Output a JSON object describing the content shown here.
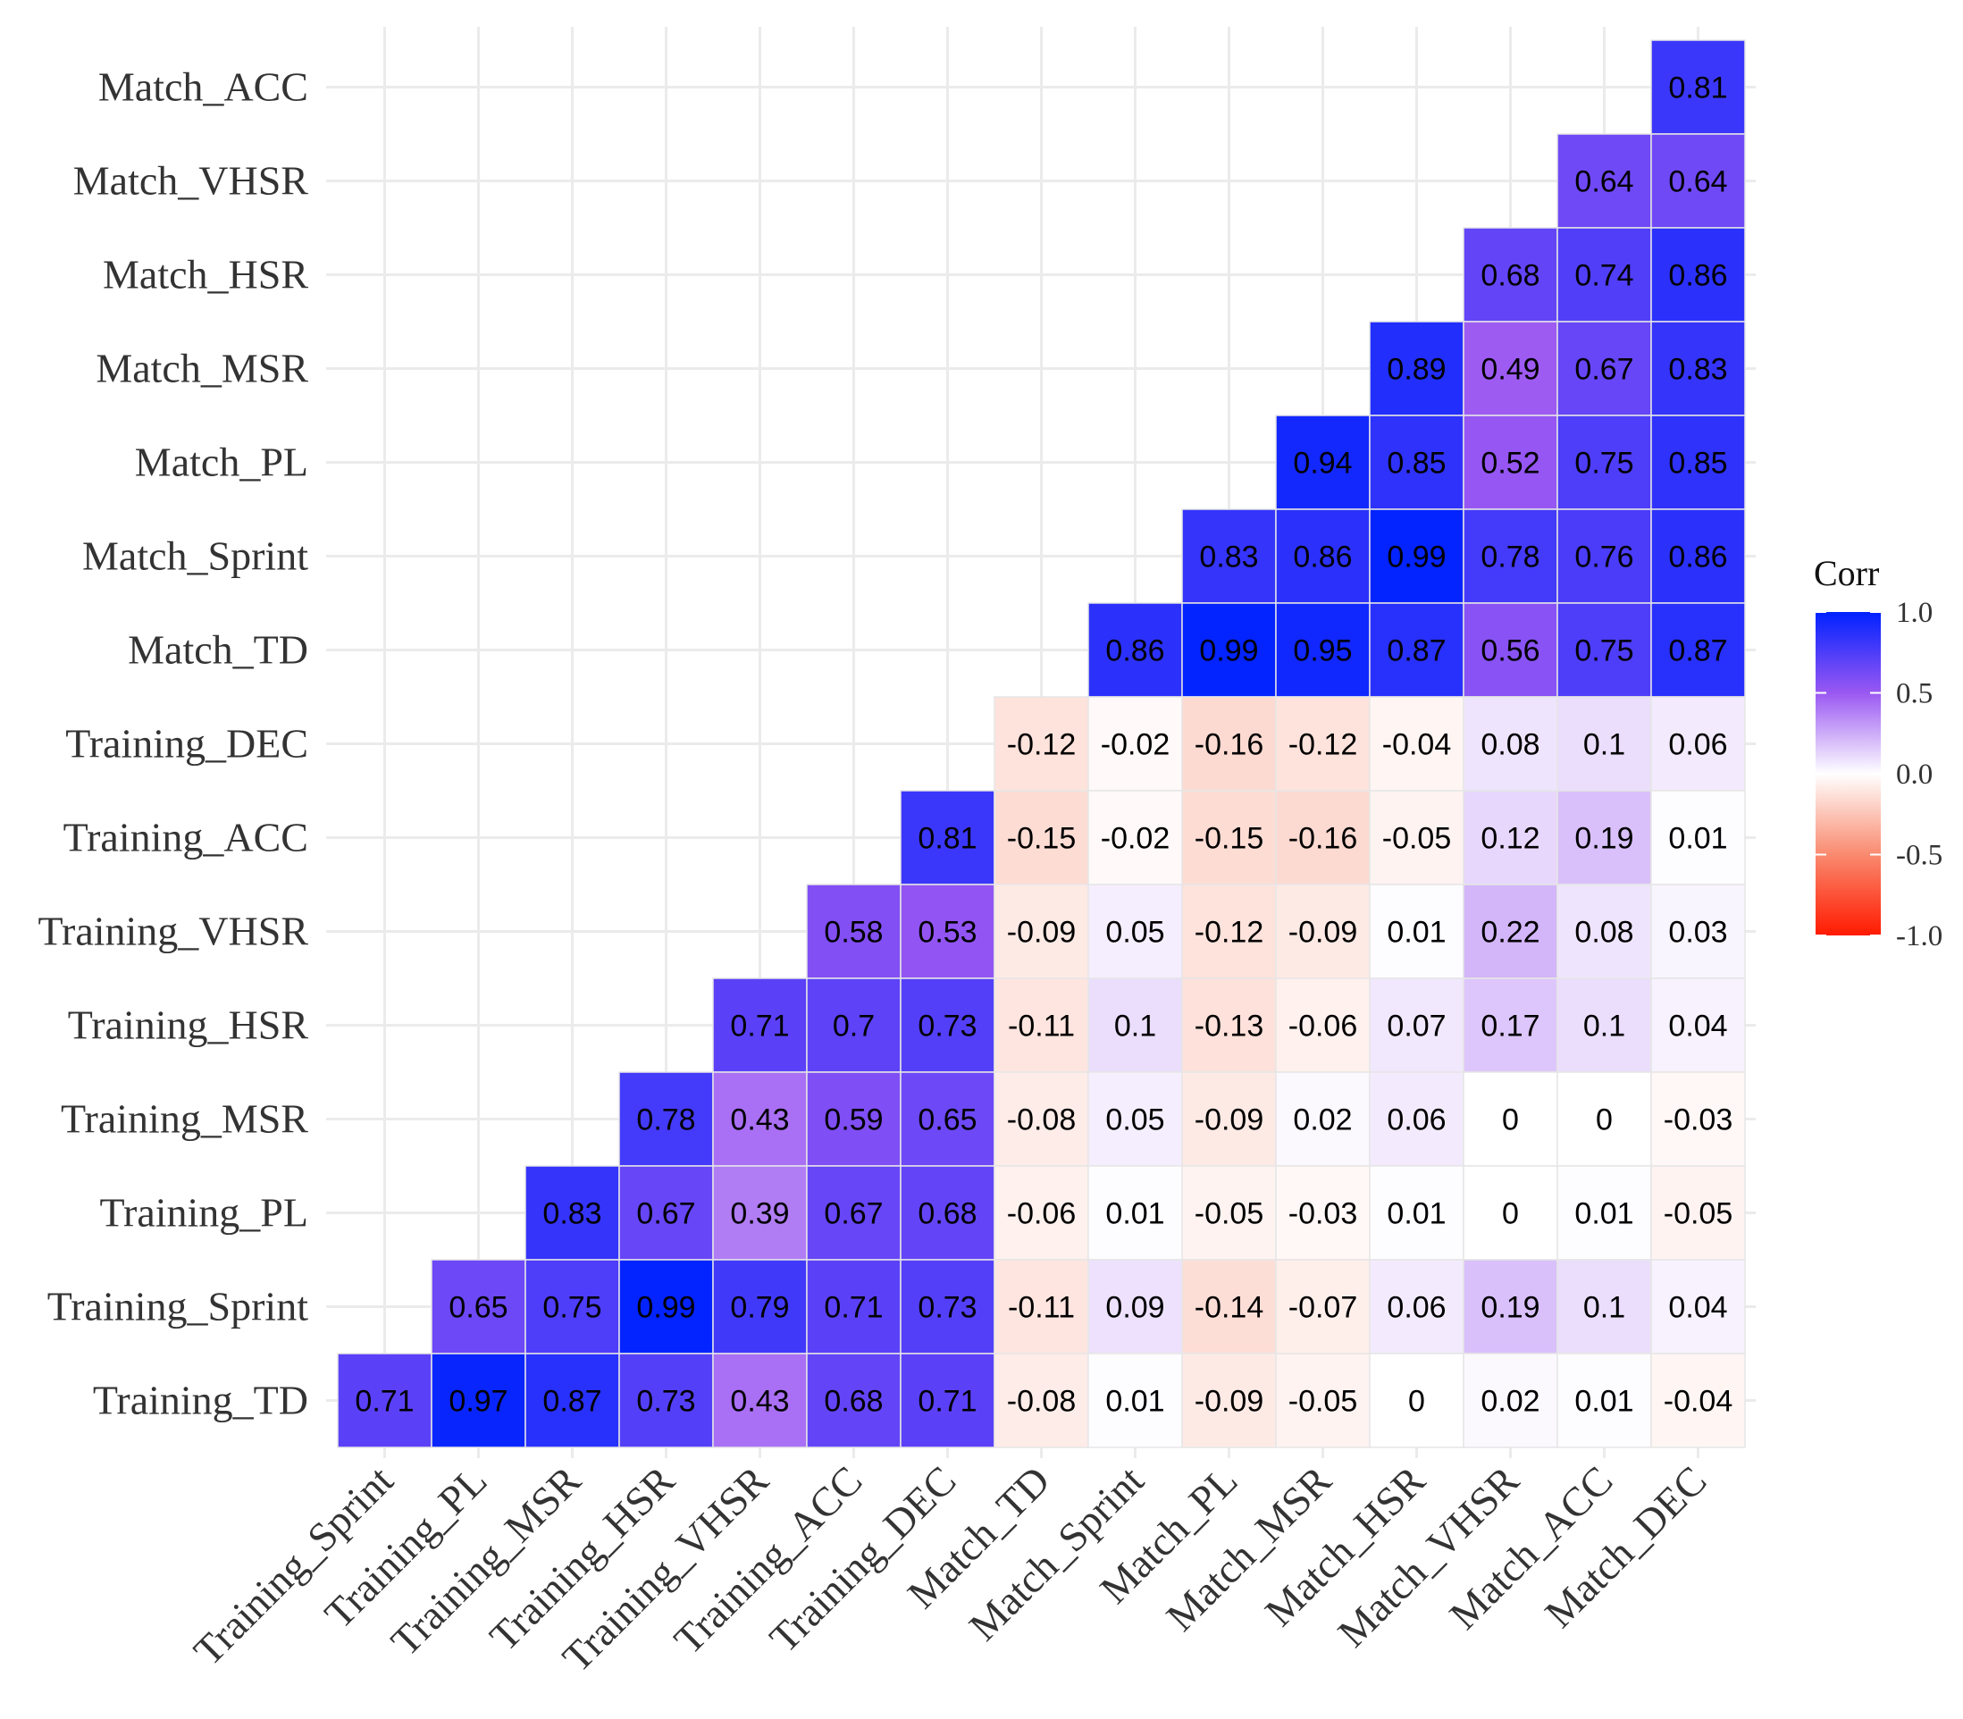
{
  "chart_data": {
    "type": "heatmap",
    "title": "",
    "xlabel": "",
    "ylabel": "",
    "x_categories": [
      "Training_Sprint",
      "Training_PL",
      "Training_MSR",
      "Training_HSR",
      "Training_VHSR",
      "Training_ACC",
      "Training_DEC",
      "Match_TD",
      "Match_Sprint",
      "Match_PL",
      "Match_MSR",
      "Match_HSR",
      "Match_VHSR",
      "Match_ACC",
      "Match_DEC"
    ],
    "y_categories": [
      "Match_ACC",
      "Match_VHSR",
      "Match_HSR",
      "Match_MSR",
      "Match_PL",
      "Match_Sprint",
      "Match_TD",
      "Training_DEC",
      "Training_ACC",
      "Training_VHSR",
      "Training_HSR",
      "Training_MSR",
      "Training_PL",
      "Training_Sprint",
      "Training_TD"
    ],
    "values": [
      [
        null,
        null,
        null,
        null,
        null,
        null,
        null,
        null,
        null,
        null,
        null,
        null,
        null,
        null,
        0.81
      ],
      [
        null,
        null,
        null,
        null,
        null,
        null,
        null,
        null,
        null,
        null,
        null,
        null,
        null,
        0.64,
        0.64
      ],
      [
        null,
        null,
        null,
        null,
        null,
        null,
        null,
        null,
        null,
        null,
        null,
        null,
        0.68,
        0.74,
        0.86
      ],
      [
        null,
        null,
        null,
        null,
        null,
        null,
        null,
        null,
        null,
        null,
        null,
        0.89,
        0.49,
        0.67,
        0.83
      ],
      [
        null,
        null,
        null,
        null,
        null,
        null,
        null,
        null,
        null,
        null,
        0.94,
        0.85,
        0.52,
        0.75,
        0.85
      ],
      [
        null,
        null,
        null,
        null,
        null,
        null,
        null,
        null,
        null,
        0.83,
        0.86,
        0.99,
        0.78,
        0.76,
        0.86
      ],
      [
        null,
        null,
        null,
        null,
        null,
        null,
        null,
        null,
        0.86,
        0.99,
        0.95,
        0.87,
        0.56,
        0.75,
        0.87
      ],
      [
        null,
        null,
        null,
        null,
        null,
        null,
        null,
        -0.12,
        -0.02,
        -0.16,
        -0.12,
        -0.04,
        0.08,
        0.1,
        0.06
      ],
      [
        null,
        null,
        null,
        null,
        null,
        null,
        0.81,
        -0.15,
        -0.02,
        -0.15,
        -0.16,
        -0.05,
        0.12,
        0.19,
        0.01
      ],
      [
        null,
        null,
        null,
        null,
        null,
        0.58,
        0.53,
        -0.09,
        0.05,
        -0.12,
        -0.09,
        0.01,
        0.22,
        0.08,
        0.03
      ],
      [
        null,
        null,
        null,
        null,
        0.71,
        0.7,
        0.73,
        -0.11,
        0.1,
        -0.13,
        -0.06,
        0.07,
        0.17,
        0.1,
        0.04
      ],
      [
        null,
        null,
        null,
        0.78,
        0.43,
        0.59,
        0.65,
        -0.08,
        0.05,
        -0.09,
        0.02,
        0.06,
        0,
        0,
        -0.03
      ],
      [
        null,
        null,
        0.83,
        0.67,
        0.39,
        0.67,
        0.68,
        -0.06,
        0.01,
        -0.05,
        -0.03,
        0.01,
        0,
        0.01,
        -0.05
      ],
      [
        null,
        0.65,
        0.75,
        0.99,
        0.79,
        0.71,
        0.73,
        -0.11,
        0.09,
        -0.14,
        -0.07,
        0.06,
        0.19,
        0.1,
        0.04
      ],
      [
        0.71,
        0.97,
        0.87,
        0.73,
        0.43,
        0.68,
        0.71,
        -0.08,
        0.01,
        -0.09,
        -0.05,
        0,
        0.02,
        0.01,
        -0.04
      ]
    ],
    "color_scale": {
      "low": "#ff1a00",
      "mid": "#ffffff",
      "high": "#0022ff",
      "range": [
        -1.0,
        1.0
      ]
    },
    "legend": {
      "title": "Corr",
      "ticks": [
        "1.0",
        "0.5",
        "0.0",
        "-0.5",
        "-1.0"
      ],
      "tick_values": [
        1.0,
        0.5,
        0.0,
        -0.5,
        -1.0
      ],
      "placement": "right"
    },
    "grid": true
  }
}
